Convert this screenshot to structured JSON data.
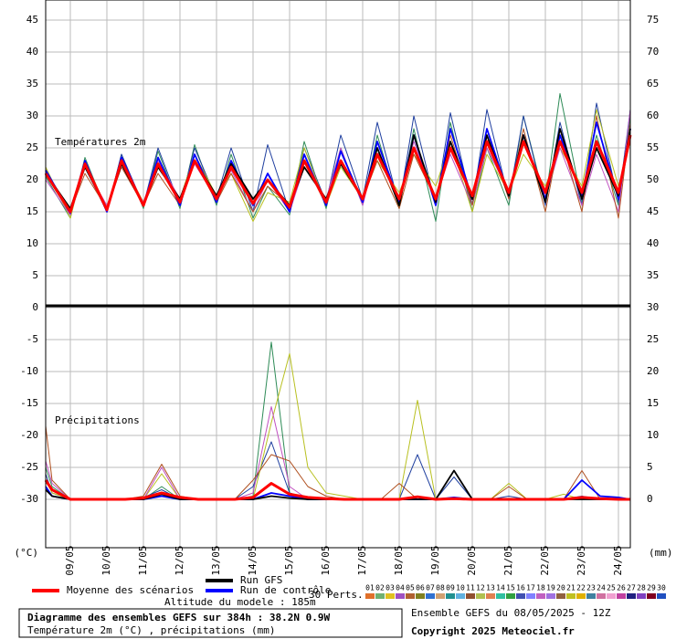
{
  "chart_data": [
    {
      "type": "line",
      "label": "Températures 2m",
      "ylim": [
        0,
        48
      ],
      "yticks": [
        0,
        5,
        10,
        15,
        20,
        25,
        30,
        35,
        40,
        45
      ],
      "y2lim": [
        30,
        78
      ],
      "y2ticks": [
        35,
        40,
        45,
        50,
        55,
        60,
        65,
        70,
        75
      ],
      "grid": true,
      "x": [
        8.325,
        9.0,
        9.4,
        10.0,
        10.4,
        11.0,
        11.4,
        12.0,
        12.4,
        13.0,
        13.4,
        14.0,
        14.4,
        15.0,
        15.4,
        16.0,
        16.4,
        17.0,
        17.4,
        18.0,
        18.4,
        19.0,
        19.4,
        20.0,
        20.4,
        21.0,
        21.4,
        22.0,
        22.4,
        23.0,
        23.4,
        24.0,
        24.325
      ],
      "series": [
        {
          "color": "#2e8b57",
          "values": [
            20.5,
            14,
            23.5,
            15,
            24,
            15.5,
            24.5,
            15.5,
            25.5,
            16,
            24,
            14,
            19,
            14.5,
            26,
            15.5,
            25,
            16,
            27,
            15.5,
            28,
            13.5,
            29,
            15,
            25,
            16,
            30,
            16.5,
            33.5,
            16.5,
            27,
            16,
            30
          ]
        },
        {
          "color": "#1f3f9f",
          "values": [
            21,
            14.5,
            22,
            15,
            24,
            16,
            25,
            16,
            25,
            17,
            25,
            15,
            25.5,
            15,
            25,
            16.5,
            27,
            17,
            29,
            16,
            30,
            16,
            30.5,
            16,
            31,
            17,
            30,
            16,
            29,
            16,
            32,
            16.5,
            31
          ]
        },
        {
          "color": "#b8c020",
          "values": [
            22,
            14,
            23,
            15.5,
            23,
            16.5,
            22,
            17,
            24,
            17.5,
            21,
            13.5,
            18,
            16.5,
            25,
            16,
            22,
            17,
            23,
            18,
            24,
            19,
            26,
            15,
            24,
            18,
            24,
            19,
            25,
            19,
            31,
            19,
            26
          ]
        },
        {
          "color": "#c050c0",
          "values": [
            20,
            14.5,
            22,
            16,
            22,
            16.5,
            23,
            17,
            22.5,
            17,
            21.5,
            15,
            20,
            15,
            22,
            17,
            25,
            16,
            25,
            17,
            26,
            17,
            24,
            16,
            25,
            18,
            27,
            17,
            25,
            16,
            24,
            15,
            31
          ]
        },
        {
          "color": "#b05020",
          "values": [
            21,
            15,
            21,
            15.5,
            22,
            16,
            21,
            16,
            23,
            16.5,
            21,
            15,
            19,
            16,
            23,
            16,
            23,
            17,
            23,
            15.5,
            24,
            17,
            27,
            16,
            27,
            17,
            28,
            15,
            27,
            15,
            30,
            14,
            29
          ]
        },
        {
          "name": "Run de contrôle",
          "color": "#0000ff",
          "values": [
            21.5,
            14.8,
            23,
            15,
            23.5,
            16,
            23.5,
            16,
            24,
            16.5,
            23,
            16,
            21,
            15,
            24,
            16,
            24.5,
            16.5,
            26,
            16.5,
            27,
            16,
            28,
            17,
            28,
            17.5,
            27,
            17,
            27,
            17.5,
            29,
            17,
            28
          ]
        },
        {
          "name": "Run GFS",
          "color": "#000000",
          "values": [
            21,
            15.5,
            22,
            15.5,
            22.5,
            16,
            22,
            17,
            23,
            17.5,
            22.5,
            17,
            20,
            16,
            22,
            17,
            22.5,
            17,
            25,
            16,
            27,
            16.5,
            26,
            17,
            27,
            17.5,
            27,
            16.5,
            28,
            17,
            25,
            17.5,
            28
          ]
        },
        {
          "name": "Moyenne des scénarios",
          "color": "#ff0000",
          "values": [
            21,
            15,
            22.5,
            15.3,
            23,
            16,
            22.5,
            16.5,
            23,
            17,
            22,
            16.3,
            20,
            15.7,
            23,
            16.5,
            23,
            17,
            24,
            17,
            25,
            17,
            25,
            17.5,
            26,
            18,
            26,
            18,
            26,
            18,
            26,
            18,
            27
          ]
        }
      ],
      "members_label": "30 Perts.",
      "members": [
        {
          "name": "01",
          "color": "#e0702a"
        },
        {
          "name": "02",
          "color": "#70b070"
        },
        {
          "name": "03",
          "color": "#e0c020"
        },
        {
          "name": "04",
          "color": "#a050c0"
        },
        {
          "name": "05",
          "color": "#b06030"
        },
        {
          "name": "06",
          "color": "#808020"
        },
        {
          "name": "07",
          "color": "#3070d0"
        },
        {
          "name": "08",
          "color": "#d0a070"
        },
        {
          "name": "09",
          "color": "#209090"
        },
        {
          "name": "10",
          "color": "#60b0e0"
        },
        {
          "name": "11",
          "color": "#905030"
        },
        {
          "name": "12",
          "color": "#b0c050"
        },
        {
          "name": "13",
          "color": "#e08050"
        },
        {
          "name": "14",
          "color": "#30c0a0"
        },
        {
          "name": "15",
          "color": "#30a040"
        },
        {
          "name": "16",
          "color": "#4050b0"
        },
        {
          "name": "17",
          "color": "#8080ff"
        },
        {
          "name": "18",
          "color": "#c060c0"
        },
        {
          "name": "19",
          "color": "#a070e0"
        },
        {
          "name": "20",
          "color": "#906040"
        },
        {
          "name": "21",
          "color": "#c0c020"
        },
        {
          "name": "22",
          "color": "#e0b000"
        },
        {
          "name": "23",
          "color": "#4080a0"
        },
        {
          "name": "24",
          "color": "#d070a0"
        },
        {
          "name": "25",
          "color": "#f0a0d0"
        },
        {
          "name": "26",
          "color": "#c040a0"
        },
        {
          "name": "27",
          "color": "#202080"
        },
        {
          "name": "28",
          "color": "#8040c0"
        },
        {
          "name": "29",
          "color": "#800020"
        },
        {
          "name": "30",
          "color": "#2050c0"
        }
      ],
      "altitude": "Altitude du modele : 185m"
    },
    {
      "type": "line",
      "label": "Précipitations",
      "ylabel": "(°C)",
      "y2label": "(mm)",
      "ylim": [
        -37.5,
        0
      ],
      "yticks": [
        -5,
        -10,
        -15,
        -20,
        -25,
        -30
      ],
      "y2lim": [
        -7.5,
        30
      ],
      "y2ticks": [
        30,
        25,
        20,
        15,
        10,
        5,
        0
      ],
      "grid": true,
      "xlim": [
        8.325,
        24.325
      ],
      "xticks": [
        {
          "value": 9,
          "label": "09/05"
        },
        {
          "value": 10,
          "label": "10/05"
        },
        {
          "value": 11,
          "label": "11/05"
        },
        {
          "value": 12,
          "label": "12/05"
        },
        {
          "value": 13,
          "label": "13/05"
        },
        {
          "value": 14,
          "label": "14/05"
        },
        {
          "value": 15,
          "label": "15/05"
        },
        {
          "value": 16,
          "label": "16/05"
        },
        {
          "value": 17,
          "label": "17/05"
        },
        {
          "value": 18,
          "label": "18/05"
        },
        {
          "value": 19,
          "label": "19/05"
        },
        {
          "value": 20,
          "label": "20/05"
        },
        {
          "value": 21,
          "label": "21/05"
        },
        {
          "value": 22,
          "label": "22/05"
        },
        {
          "value": 23,
          "label": "23/05"
        },
        {
          "value": 24,
          "label": "24/05"
        }
      ],
      "x": [
        8.325,
        8.5,
        9,
        9.5,
        10,
        10.5,
        11,
        11.5,
        12,
        12.5,
        13,
        13.5,
        14,
        14.5,
        15,
        15.5,
        16,
        16.5,
        17,
        17.5,
        18,
        18.5,
        19,
        19.5,
        20,
        20.5,
        21,
        21.5,
        22,
        22.5,
        23,
        23.5,
        24,
        24.325
      ],
      "series": [
        {
          "axis": "y2",
          "color": "#2e8b57",
          "values": [
            5,
            2,
            0,
            0,
            0,
            0,
            0,
            2,
            0,
            0,
            0,
            0,
            0.5,
            24.6,
            1,
            0.2,
            0,
            0,
            0,
            0,
            0,
            0,
            0,
            0,
            0,
            0,
            0,
            0,
            0,
            0,
            0,
            0,
            0,
            0
          ]
        },
        {
          "axis": "y2",
          "color": "#1f3f9f",
          "values": [
            4,
            1,
            0,
            0,
            0,
            0,
            0.3,
            1.5,
            0,
            0,
            0,
            0,
            2,
            9,
            1,
            0,
            0,
            0,
            0,
            0,
            0,
            7,
            0,
            3.5,
            0,
            0,
            0.5,
            0,
            0,
            0,
            0.5,
            0,
            0,
            0
          ]
        },
        {
          "axis": "y2",
          "color": "#b8c020",
          "values": [
            3,
            1,
            0,
            0,
            0,
            0,
            0,
            4,
            0,
            0,
            0,
            0,
            0,
            12,
            22.8,
            5,
            1,
            0.5,
            0,
            0,
            0,
            15.5,
            0,
            0,
            0,
            0,
            2.5,
            0,
            0,
            0.8,
            0,
            0,
            0,
            0
          ]
        },
        {
          "axis": "y2",
          "color": "#c050c0",
          "values": [
            6,
            2.5,
            0,
            0,
            0,
            0,
            0,
            5,
            0,
            0,
            0,
            0,
            1,
            14.5,
            2,
            0,
            0,
            0,
            0,
            0,
            0,
            0,
            0,
            0,
            0,
            0,
            0,
            0,
            0,
            0,
            0,
            0,
            0,
            0
          ]
        },
        {
          "axis": "y2",
          "color": "#b05020",
          "values": [
            11.5,
            3,
            0,
            0,
            0,
            0,
            0.5,
            5.5,
            0.5,
            0,
            0,
            0,
            3,
            7,
            6,
            2,
            0.5,
            0,
            0,
            0,
            2.5,
            0,
            0,
            0,
            0,
            0,
            2,
            0,
            0,
            0,
            4.5,
            0,
            0,
            0
          ]
        },
        {
          "axis": "y2",
          "color": "#0000ff",
          "values": [
            2,
            0.5,
            0,
            0,
            0,
            0,
            0,
            0.5,
            0,
            0,
            0,
            0,
            0,
            1,
            0.5,
            0,
            0,
            0,
            0,
            0,
            0,
            0,
            0,
            0.3,
            0,
            0,
            0,
            0,
            0,
            0,
            3,
            0.5,
            0.3,
            0
          ]
        },
        {
          "axis": "y2",
          "color": "#000000",
          "values": [
            1.5,
            0.5,
            0,
            0,
            0,
            0,
            0,
            0.8,
            0,
            0,
            0,
            0,
            0,
            0.5,
            0.2,
            0,
            0,
            0,
            0,
            0,
            0,
            0,
            0,
            4.5,
            0,
            0,
            0,
            0,
            0,
            0,
            0,
            0,
            0,
            0
          ]
        },
        {
          "axis": "y2",
          "color": "#ff0000",
          "values": [
            3,
            1.5,
            0,
            0,
            0,
            0,
            0.2,
            1,
            0.3,
            0,
            0,
            0,
            0.3,
            2.5,
            0.8,
            0.3,
            0.1,
            0,
            0,
            0,
            0,
            0.4,
            0,
            0.1,
            0,
            0,
            0,
            0,
            0,
            0,
            0.3,
            0.1,
            0,
            0
          ]
        }
      ]
    }
  ],
  "footer": {
    "title": "Diagramme des ensembles GEFS sur 384h : 38.2N 0.9W",
    "subtitle": "Température 2m (°C) , précipitations (mm)",
    "run": "Ensemble GEFS du 08/05/2025 - 12Z",
    "copyright": "Copyright 2025 Meteociel.fr"
  }
}
